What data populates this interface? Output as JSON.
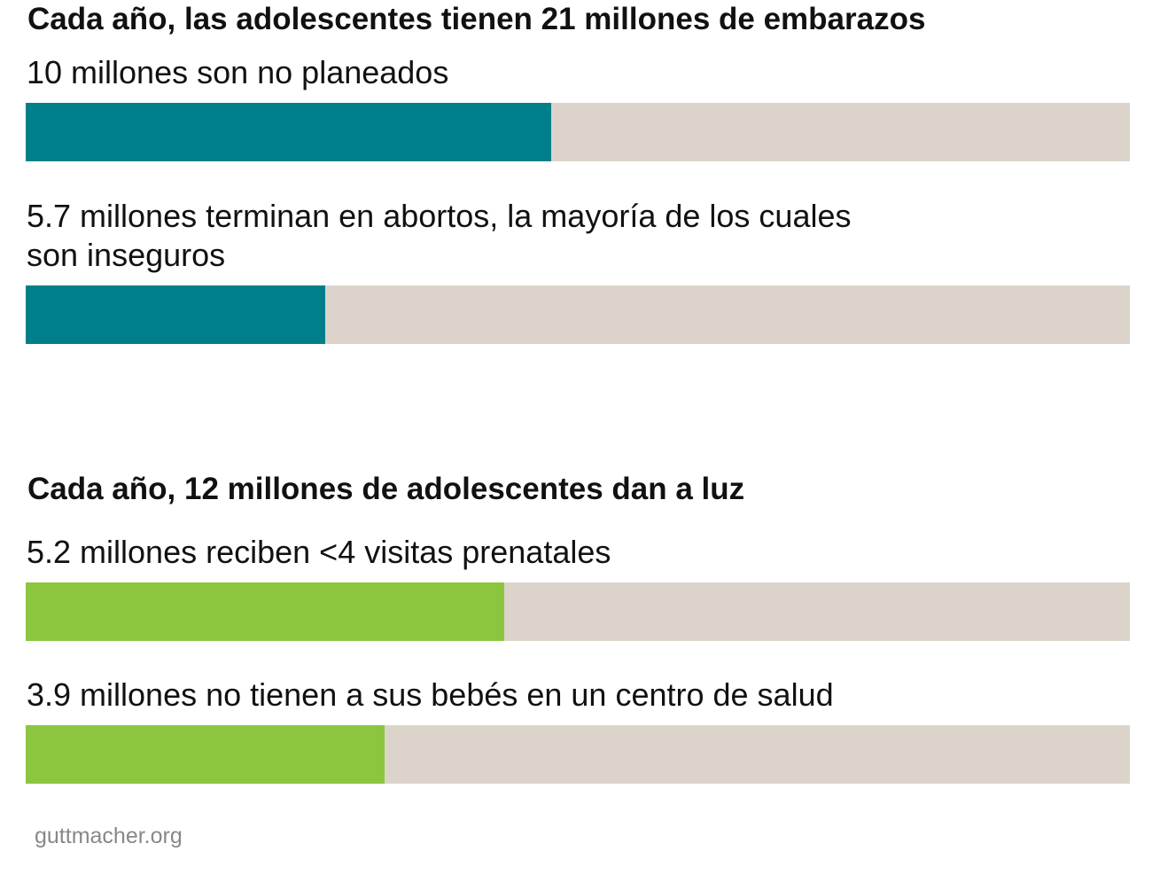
{
  "chart_data": [
    {
      "type": "bar",
      "title": "Cada año, las adolescentes tienen 21 millones de embarazos",
      "total": 21,
      "unit": "millones",
      "color": "#007f8a",
      "track_color": "#dcd4cb",
      "bars": [
        {
          "label": "10 millones son no planeados",
          "value": 10
        },
        {
          "label": "5.7 millones terminan en abortos, la mayoría de los cuales\nson inseguros",
          "value": 5.7
        }
      ]
    },
    {
      "type": "bar",
      "title": "Cada año, 12 millones de adolescentes dan a luz",
      "total": 12,
      "unit": "millones",
      "color": "#8cc63f",
      "track_color": "#dcd4cb",
      "bars": [
        {
          "label": "5.2 millones reciben <4 visitas prenatales",
          "value": 5.2
        },
        {
          "label": "3.9 millones no tienen a sus bebés en un centro de salud",
          "value": 3.9
        }
      ]
    }
  ],
  "source": "guttmacher.org"
}
